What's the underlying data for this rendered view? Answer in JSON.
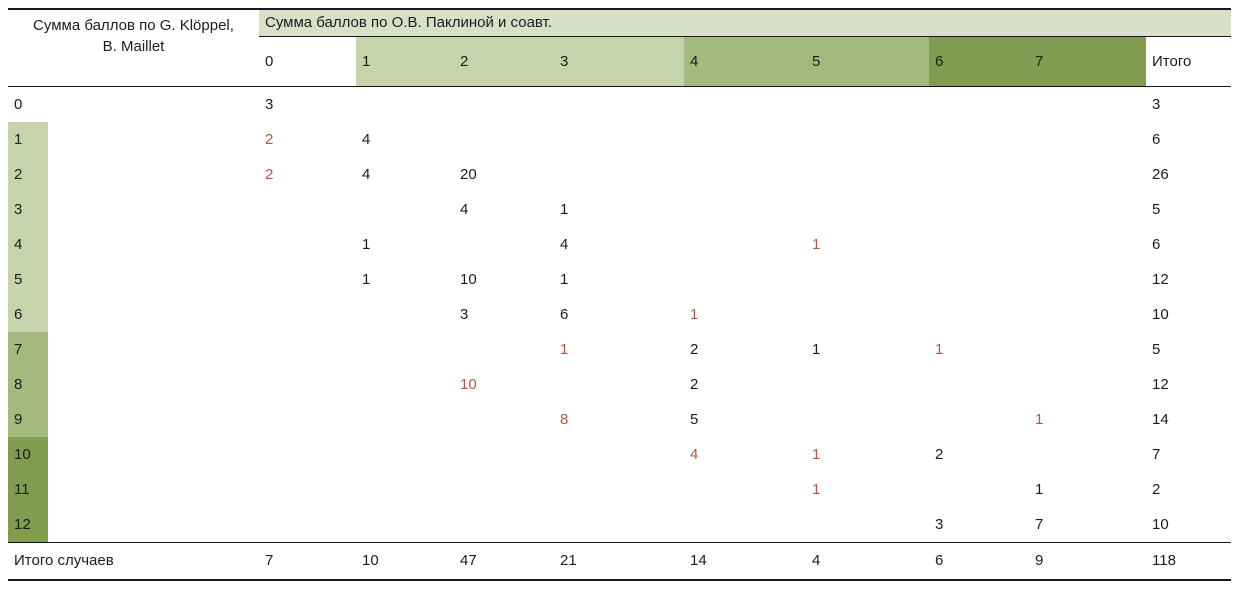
{
  "chart_data": {
    "type": "table",
    "row_axis_title": "Сумма баллов по G. Klöppel,\nB. Maillet",
    "col_axis_title": "Сумма баллов по О.В. Паклиной и соавт.",
    "col_headers": [
      "0",
      "1",
      "2",
      "3",
      "4",
      "5",
      "6",
      "7",
      "Итого"
    ],
    "col_header_tints": [
      "none",
      "light",
      "light",
      "light",
      "medium",
      "medium",
      "dark",
      "dark",
      "none"
    ],
    "rows": [
      {
        "label": "0",
        "tint": "none",
        "cells": [
          3,
          null,
          null,
          null,
          null,
          null,
          null,
          null
        ],
        "red": [],
        "total": 3
      },
      {
        "label": "1",
        "tint": "light",
        "cells": [
          2,
          4,
          null,
          null,
          null,
          null,
          null,
          null
        ],
        "red": [
          0
        ],
        "total": 6
      },
      {
        "label": "2",
        "tint": "light",
        "cells": [
          2,
          4,
          20,
          null,
          null,
          null,
          null,
          null
        ],
        "red": [
          0
        ],
        "total": 26
      },
      {
        "label": "3",
        "tint": "light",
        "cells": [
          null,
          null,
          4,
          1,
          null,
          null,
          null,
          null
        ],
        "red": [],
        "total": 5
      },
      {
        "label": "4",
        "tint": "light",
        "cells": [
          null,
          1,
          null,
          4,
          null,
          1,
          null,
          null
        ],
        "red": [
          5
        ],
        "total": 6
      },
      {
        "label": "5",
        "tint": "light",
        "cells": [
          null,
          1,
          10,
          1,
          null,
          null,
          null,
          null
        ],
        "red": [],
        "total": 12
      },
      {
        "label": "6",
        "tint": "light",
        "cells": [
          null,
          null,
          3,
          6,
          1,
          null,
          null,
          null
        ],
        "red": [
          4
        ],
        "total": 10
      },
      {
        "label": "7",
        "tint": "medium",
        "cells": [
          null,
          null,
          null,
          1,
          2,
          1,
          1,
          null
        ],
        "red": [
          3,
          6
        ],
        "total": 5
      },
      {
        "label": "8",
        "tint": "medium",
        "cells": [
          null,
          null,
          10,
          null,
          2,
          null,
          null,
          null
        ],
        "red": [
          2
        ],
        "total": 12
      },
      {
        "label": "9",
        "tint": "medium",
        "cells": [
          null,
          null,
          null,
          8,
          5,
          null,
          null,
          1
        ],
        "red": [
          3,
          7
        ],
        "total": 14
      },
      {
        "label": "10",
        "tint": "dark",
        "cells": [
          null,
          null,
          null,
          null,
          4,
          1,
          2,
          null
        ],
        "red": [
          4,
          5
        ],
        "total": 7
      },
      {
        "label": "11",
        "tint": "dark",
        "cells": [
          null,
          null,
          null,
          null,
          null,
          1,
          null,
          1
        ],
        "red": [
          5
        ],
        "total": 2
      },
      {
        "label": "12",
        "tint": "dark",
        "cells": [
          null,
          null,
          null,
          null,
          null,
          null,
          3,
          7
        ],
        "red": [],
        "total": 10
      }
    ],
    "footer": {
      "label": "Итого случаев",
      "cells": [
        7,
        10,
        47,
        21,
        14,
        4,
        6,
        9
      ],
      "total": 118
    }
  },
  "colors": {
    "tint_light": "#c7d3aa",
    "tint_medium": "#a4b97d",
    "tint_dark": "#7f9c50",
    "header_band": "#d8e0c8",
    "highlight_red": "#b5544a",
    "rule_line": "#17191c",
    "text": "#1c1c1c"
  }
}
